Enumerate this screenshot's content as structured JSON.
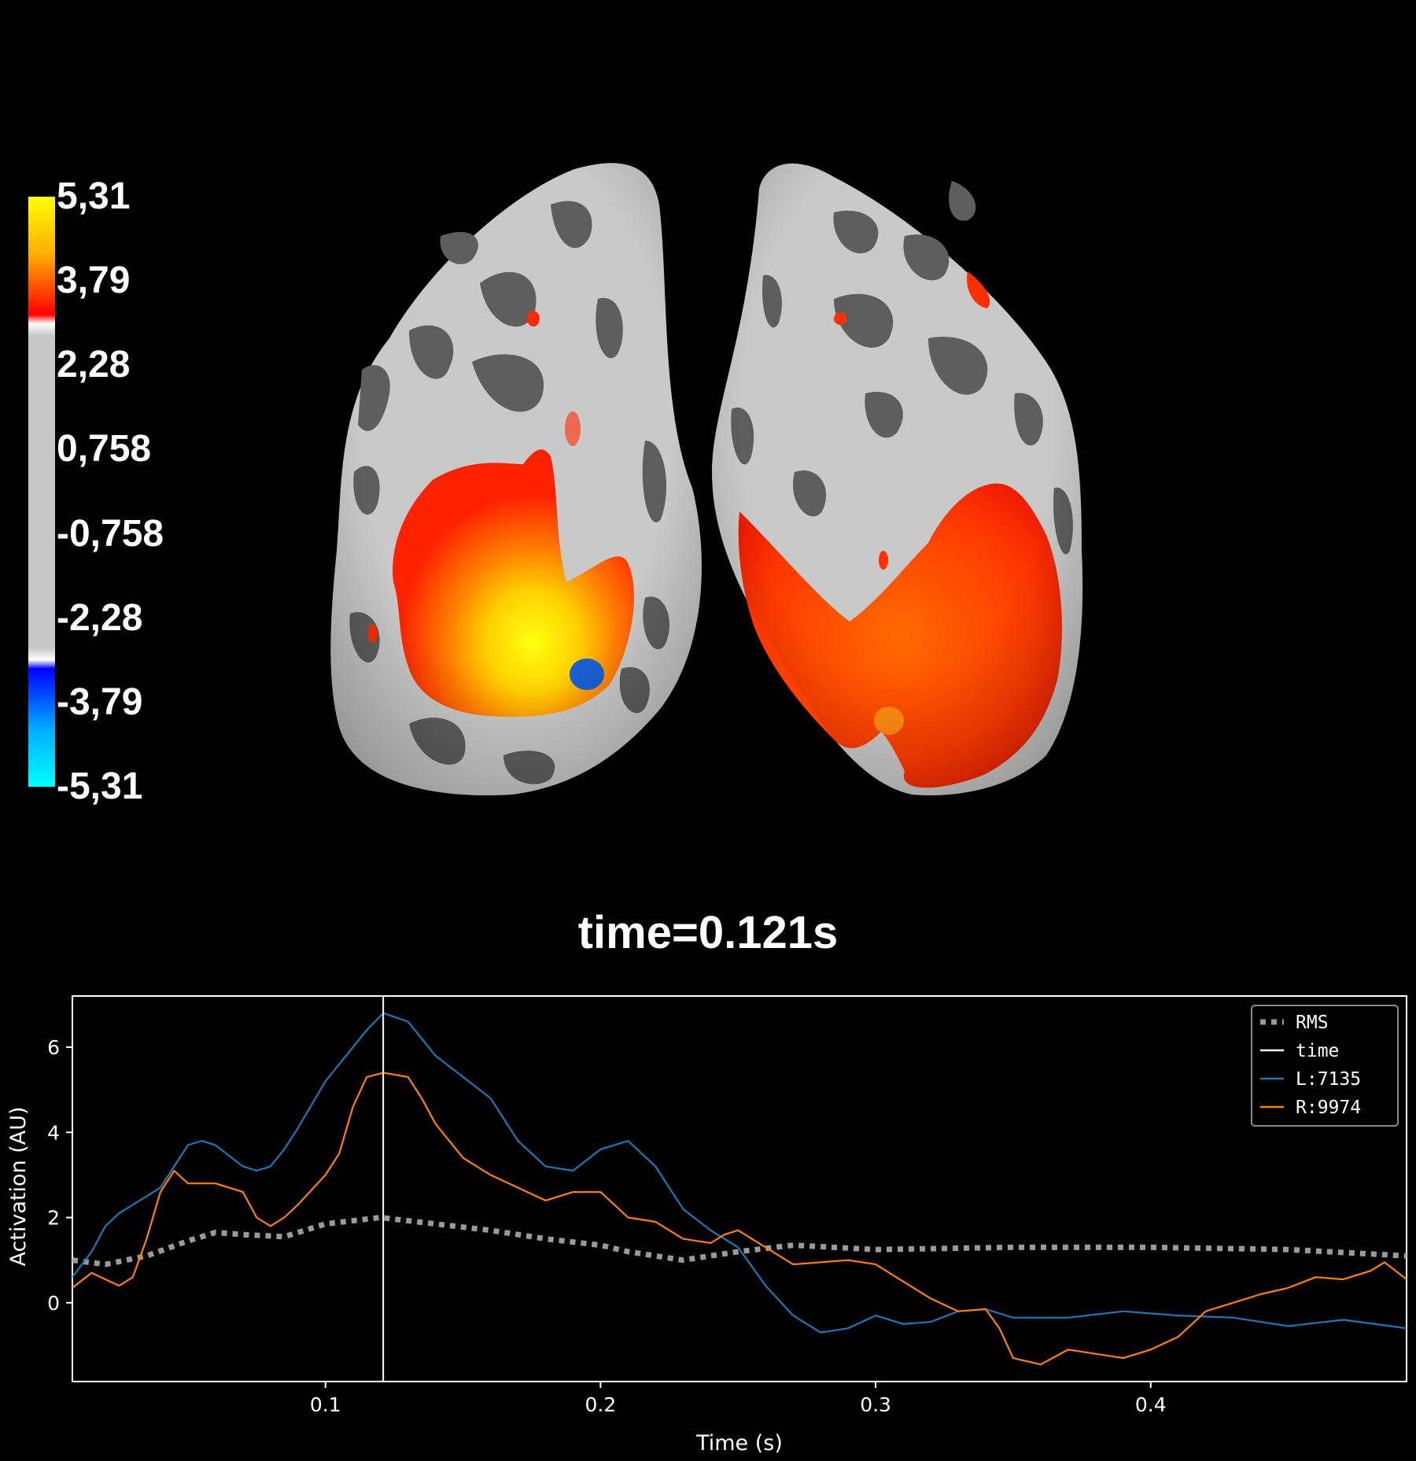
{
  "colorbar": {
    "ticks": [
      "5,31",
      "3,79",
      "2,28",
      "0,758",
      "-0,758",
      "-2,28",
      "-3,79",
      "-5,31"
    ]
  },
  "time_label": "time=0.121s",
  "colors": {
    "background": "#000000",
    "curv_light": "#c8c8c8",
    "curv_dark": "#5c5c5c",
    "activation_hot": "#ff2a00",
    "activation_peak": "#ffff00",
    "activation_cold": "#1a5fd0",
    "series_L": "#1f77b4",
    "series_R": "#ff7f0e",
    "rms": "#9a9a9a"
  },
  "chart_data": {
    "type": "line",
    "xlabel": "Time (s)",
    "ylabel": "Activation (AU)",
    "xlim": [
      0.008,
      0.493
    ],
    "ylim": [
      -1.85,
      7.2
    ],
    "xticks": [
      0.1,
      0.2,
      0.3,
      0.4
    ],
    "xtick_labels": [
      "0.1",
      "0.2",
      "0.3",
      "0.4"
    ],
    "yticks": [
      0,
      2,
      4,
      6
    ],
    "ytick_labels": [
      "0",
      "2",
      "4",
      "6"
    ],
    "grid": false,
    "legend_position": "top-right",
    "time_marker": {
      "name": "time",
      "x": 0.121
    },
    "series": [
      {
        "name": "RMS",
        "style": "dotted",
        "x": [
          0.008,
          0.02,
          0.035,
          0.05,
          0.06,
          0.07,
          0.085,
          0.1,
          0.12,
          0.14,
          0.16,
          0.18,
          0.2,
          0.21,
          0.23,
          0.25,
          0.27,
          0.3,
          0.35,
          0.4,
          0.45,
          0.493
        ],
        "y": [
          1.0,
          0.9,
          1.1,
          1.45,
          1.65,
          1.6,
          1.55,
          1.85,
          2.0,
          1.85,
          1.7,
          1.5,
          1.35,
          1.2,
          1.0,
          1.2,
          1.35,
          1.25,
          1.3,
          1.3,
          1.25,
          1.1
        ]
      },
      {
        "name": "L:7135",
        "style": "solid",
        "x": [
          0.008,
          0.015,
          0.02,
          0.025,
          0.03,
          0.04,
          0.05,
          0.055,
          0.06,
          0.07,
          0.075,
          0.08,
          0.085,
          0.09,
          0.1,
          0.11,
          0.115,
          0.121,
          0.13,
          0.14,
          0.15,
          0.16,
          0.17,
          0.18,
          0.19,
          0.2,
          0.21,
          0.22,
          0.23,
          0.24,
          0.25,
          0.26,
          0.27,
          0.28,
          0.29,
          0.3,
          0.31,
          0.32,
          0.33,
          0.34,
          0.35,
          0.37,
          0.39,
          0.41,
          0.43,
          0.45,
          0.47,
          0.493
        ],
        "y": [
          0.6,
          1.2,
          1.8,
          2.1,
          2.3,
          2.7,
          3.7,
          3.8,
          3.7,
          3.2,
          3.1,
          3.2,
          3.6,
          4.1,
          5.2,
          6.0,
          6.4,
          6.8,
          6.6,
          5.8,
          5.3,
          4.8,
          3.8,
          3.2,
          3.1,
          3.6,
          3.8,
          3.2,
          2.2,
          1.7,
          1.3,
          0.4,
          -0.3,
          -0.7,
          -0.6,
          -0.3,
          -0.5,
          -0.45,
          -0.2,
          -0.15,
          -0.35,
          -0.35,
          -0.2,
          -0.3,
          -0.35,
          -0.55,
          -0.4,
          -0.6
        ]
      },
      {
        "name": "R:9974",
        "style": "solid",
        "x": [
          0.008,
          0.015,
          0.02,
          0.025,
          0.03,
          0.035,
          0.04,
          0.045,
          0.05,
          0.06,
          0.07,
          0.075,
          0.08,
          0.085,
          0.09,
          0.1,
          0.105,
          0.11,
          0.115,
          0.121,
          0.13,
          0.135,
          0.14,
          0.15,
          0.16,
          0.17,
          0.18,
          0.19,
          0.2,
          0.21,
          0.22,
          0.23,
          0.24,
          0.245,
          0.25,
          0.26,
          0.27,
          0.29,
          0.3,
          0.31,
          0.32,
          0.33,
          0.34,
          0.345,
          0.35,
          0.36,
          0.37,
          0.38,
          0.39,
          0.4,
          0.41,
          0.42,
          0.43,
          0.44,
          0.45,
          0.46,
          0.47,
          0.48,
          0.485,
          0.493
        ],
        "y": [
          0.35,
          0.7,
          0.55,
          0.4,
          0.6,
          1.5,
          2.6,
          3.1,
          2.8,
          2.8,
          2.6,
          2.0,
          1.8,
          2.0,
          2.3,
          3.0,
          3.5,
          4.6,
          5.3,
          5.4,
          5.3,
          4.8,
          4.2,
          3.4,
          3.0,
          2.7,
          2.4,
          2.6,
          2.6,
          2.0,
          1.9,
          1.5,
          1.4,
          1.6,
          1.7,
          1.3,
          0.9,
          1.0,
          0.9,
          0.5,
          0.1,
          -0.2,
          -0.15,
          -0.6,
          -1.3,
          -1.45,
          -1.1,
          -1.2,
          -1.3,
          -1.1,
          -0.8,
          -0.2,
          0.0,
          0.2,
          0.35,
          0.6,
          0.55,
          0.75,
          0.95,
          0.55
        ]
      }
    ]
  }
}
